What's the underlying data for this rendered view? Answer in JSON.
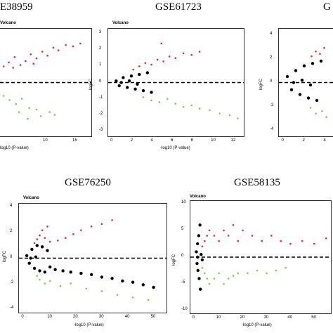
{
  "chart_data": [
    {
      "type": "scatter",
      "panel_id": "p1",
      "title_label": "E38959",
      "subtitle": "Volcano",
      "xlabel": "log10 (P-value)",
      "ylabel": "",
      "x_ticks": [
        "10",
        "15"
      ],
      "y_ticks": [],
      "xlim": [
        5,
        17.5
      ],
      "ylim": [
        -4,
        4
      ],
      "threshold_line_y": 0,
      "series": [
        {
          "name": "",
          "color": "#e8262c",
          "values": [
            [
              5.5,
              1.2
            ],
            [
              6.2,
              1.5
            ],
            [
              7.0,
              1.9
            ],
            [
              7.8,
              1.3
            ],
            [
              8.5,
              1.6
            ],
            [
              9.2,
              2.1
            ],
            [
              10.0,
              1.8
            ],
            [
              10.8,
              2.3
            ],
            [
              11.5,
              2.0
            ],
            [
              12.3,
              2.6
            ],
            [
              13.0,
              2.4
            ],
            [
              14.0,
              2.8
            ],
            [
              15.0,
              2.7
            ],
            [
              16.0,
              2.9
            ],
            [
              6.8,
              1.1
            ],
            [
              9.6,
              1.4
            ]
          ]
        },
        {
          "name": "",
          "color": "#7bcf3a",
          "values": [
            [
              5.5,
              -1.0
            ],
            [
              6.3,
              -1.3
            ],
            [
              7.2,
              -1.6
            ],
            [
              8.0,
              -1.2
            ],
            [
              9.0,
              -1.9
            ],
            [
              10.0,
              -2.0
            ],
            [
              10.6,
              -2.5
            ],
            [
              11.8,
              -2.2
            ],
            [
              12.5,
              -2.4
            ],
            [
              7.6,
              -2.2
            ],
            [
              8.8,
              -2.7
            ]
          ]
        }
      ]
    },
    {
      "type": "scatter",
      "panel_id": "p2",
      "title_label": "GSE61723",
      "subtitle": "Volcano",
      "xlabel": "-log10 (P-value)",
      "ylabel": "logFC",
      "x_ticks": [
        "0",
        "2",
        "4",
        "6",
        "8",
        "10",
        "12"
      ],
      "y_ticks": [
        "3",
        "2",
        "1",
        "0",
        "-1",
        "-2",
        "-3"
      ],
      "xlim": [
        -0.5,
        13
      ],
      "ylim": [
        -3.3,
        3.3
      ],
      "threshold_line_y": 0,
      "series": [
        {
          "name": "",
          "color": "#000000",
          "values": [
            [
              0.3,
              0.1
            ],
            [
              0.6,
              -0.2
            ],
            [
              1.0,
              0.3
            ],
            [
              1.4,
              -0.3
            ],
            [
              1.8,
              0.4
            ],
            [
              2.2,
              -0.4
            ],
            [
              2.6,
              0.5
            ],
            [
              3.0,
              -0.5
            ],
            [
              0.8,
              0.0
            ],
            [
              1.6,
              0.1
            ],
            [
              2.4,
              -0.1
            ],
            [
              3.4,
              0.6
            ],
            [
              3.8,
              -0.6
            ]
          ]
        },
        {
          "name": "",
          "color": "#e8262c",
          "values": [
            [
              2.0,
              0.8
            ],
            [
              2.6,
              1.0
            ],
            [
              3.2,
              1.2
            ],
            [
              3.8,
              1.1
            ],
            [
              4.4,
              1.4
            ],
            [
              5.0,
              1.3
            ],
            [
              5.6,
              1.6
            ],
            [
              6.2,
              1.5
            ],
            [
              7.0,
              1.8
            ],
            [
              7.8,
              1.7
            ],
            [
              8.6,
              1.9
            ],
            [
              4.8,
              2.4
            ]
          ]
        },
        {
          "name": "",
          "color": "#7bcf3a",
          "values": [
            [
              3.0,
              -0.9
            ],
            [
              3.8,
              -1.1
            ],
            [
              4.6,
              -1.2
            ],
            [
              5.4,
              -1.0
            ],
            [
              6.2,
              -1.3
            ],
            [
              7.0,
              -1.5
            ],
            [
              7.8,
              -1.4
            ],
            [
              8.6,
              -1.6
            ],
            [
              9.6,
              -1.7
            ],
            [
              10.6,
              -1.9
            ],
            [
              11.6,
              -2.0
            ],
            [
              12.4,
              -2.2
            ]
          ]
        }
      ]
    },
    {
      "type": "scatter",
      "panel_id": "p3",
      "title_label": "G",
      "subtitle": "",
      "xlabel": "",
      "ylabel": "logFC",
      "x_ticks": [
        "0",
        "2",
        "4"
      ],
      "y_ticks": [
        "4",
        "2",
        "0",
        "-2",
        "-4"
      ],
      "xlim": [
        -0.5,
        5.5
      ],
      "ylim": [
        -4.5,
        4.5
      ],
      "threshold_line_y": 0,
      "series": [
        {
          "name": "",
          "color": "#000000",
          "values": [
            [
              0.3,
              0.5
            ],
            [
              0.7,
              -0.6
            ],
            [
              1.1,
              1.0
            ],
            [
              1.5,
              -1.0
            ],
            [
              1.9,
              1.4
            ],
            [
              2.3,
              -1.3
            ],
            [
              2.7,
              1.6
            ],
            [
              3.1,
              -1.5
            ],
            [
              3.5,
              1.8
            ],
            [
              0.9,
              0.0
            ],
            [
              1.7,
              0.2
            ],
            [
              2.5,
              -0.2
            ]
          ]
        },
        {
          "name": "",
          "color": "#e8262c",
          "values": [
            [
              2.6,
              2.2
            ],
            [
              3.0,
              2.6
            ],
            [
              3.4,
              2.4
            ],
            [
              3.8,
              2.9
            ]
          ]
        },
        {
          "name": "",
          "color": "#7bcf3a",
          "values": [
            [
              2.5,
              -2.1
            ],
            [
              3.0,
              -2.6
            ],
            [
              3.6,
              -2.4
            ],
            [
              4.0,
              -2.9
            ]
          ]
        }
      ]
    },
    {
      "type": "scatter",
      "panel_id": "p4",
      "title_label": "GSE76250",
      "subtitle": "Volcano",
      "xlabel": "-log10 (P-value)",
      "ylabel": "logFC",
      "x_ticks": [
        "0",
        "10",
        "20",
        "30",
        "40",
        "50"
      ],
      "y_ticks": [
        "4",
        "2",
        "0",
        "-2",
        "-4"
      ],
      "xlim": [
        -2,
        55
      ],
      "ylim": [
        -4.3,
        4.3
      ],
      "threshold_line_y": 0,
      "series": [
        {
          "name": "",
          "color": "#000000",
          "values": [
            [
              1,
              0.2
            ],
            [
              2,
              -0.4
            ],
            [
              3,
              0.7
            ],
            [
              4,
              -0.8
            ],
            [
              5,
              1.0
            ],
            [
              6,
              -1.0
            ],
            [
              7,
              0.9
            ],
            [
              8,
              -1.1
            ],
            [
              9,
              0.6
            ],
            [
              10,
              -0.7
            ],
            [
              12,
              -0.9
            ],
            [
              15,
              -1.0
            ],
            [
              18,
              -1.1
            ],
            [
              22,
              -1.2
            ],
            [
              26,
              -1.3
            ],
            [
              30,
              -1.5
            ],
            [
              34,
              -1.6
            ],
            [
              38,
              -1.8
            ],
            [
              42,
              -1.9
            ],
            [
              46,
              -2.1
            ],
            [
              50,
              -2.3
            ],
            [
              2.5,
              0.0
            ],
            [
              4.5,
              0.1
            ]
          ]
        },
        {
          "name": "",
          "color": "#e8262c",
          "values": [
            [
              4,
              1.2
            ],
            [
              5,
              1.5
            ],
            [
              6,
              1.8
            ],
            [
              7,
              2.2
            ],
            [
              8,
              1.6
            ],
            [
              9,
              2.5
            ],
            [
              10,
              1.3
            ],
            [
              13,
              1.4
            ],
            [
              16,
              1.6
            ],
            [
              19,
              1.9
            ],
            [
              22,
              2.2
            ],
            [
              26,
              2.5
            ],
            [
              30,
              2.7
            ],
            [
              34,
              3.0
            ]
          ]
        },
        {
          "name": "",
          "color": "#7bcf3a",
          "values": [
            [
              5,
              -1.4
            ],
            [
              6,
              -1.7
            ],
            [
              8,
              -2.0
            ],
            [
              10,
              -1.8
            ],
            [
              14,
              -2.2
            ],
            [
              18,
              -2.0
            ],
            [
              24,
              -2.4
            ],
            [
              30,
              -2.6
            ],
            [
              36,
              -2.9
            ],
            [
              42,
              -3.1
            ],
            [
              48,
              -3.3
            ]
          ]
        }
      ]
    },
    {
      "type": "scatter",
      "panel_id": "p5",
      "title_label": "GSE58135",
      "subtitle": "Volcano",
      "xlabel": "-log10 (P-value)",
      "ylabel": "logFC",
      "x_ticks": [
        "0",
        "10",
        "20",
        "30",
        "40",
        "50"
      ],
      "y_ticks": [
        "10",
        "5",
        "0",
        "-5",
        "-10"
      ],
      "xlim": [
        -2,
        57
      ],
      "ylim": [
        -10.5,
        10.5
      ],
      "threshold_line_y": 0,
      "series": [
        {
          "name": "",
          "color": "#000000",
          "values": [
            [
              0.5,
              1.0
            ],
            [
              0.8,
              -1.2
            ],
            [
              1.0,
              2.5
            ],
            [
              1.2,
              -2.5
            ],
            [
              1.5,
              4.0
            ],
            [
              1.7,
              -4.0
            ],
            [
              2.0,
              6.0
            ],
            [
              2.2,
              -6.0
            ],
            [
              1.0,
              0.0
            ],
            [
              2.5,
              0.5
            ],
            [
              3.0,
              -0.5
            ]
          ]
        },
        {
          "name": "",
          "color": "#e8262c",
          "values": [
            [
              3,
              2
            ],
            [
              4,
              3
            ],
            [
              5,
              4
            ],
            [
              6,
              5
            ],
            [
              8,
              4
            ],
            [
              10,
              3
            ],
            [
              12,
              5
            ],
            [
              14,
              4
            ],
            [
              16,
              6
            ],
            [
              18,
              3
            ],
            [
              20,
              5
            ],
            [
              24,
              4
            ],
            [
              28,
              3
            ],
            [
              32,
              4
            ],
            [
              36,
              3
            ],
            [
              40,
              2.5
            ],
            [
              45,
              3
            ],
            [
              50,
              2.5
            ],
            [
              55,
              3.5
            ]
          ]
        },
        {
          "name": "",
          "color": "#7bcf3a",
          "values": [
            [
              3,
              -2
            ],
            [
              4,
              -3
            ],
            [
              5,
              -4
            ],
            [
              6,
              -5
            ],
            [
              8,
              -4
            ],
            [
              10,
              -3
            ],
            [
              12,
              -5
            ],
            [
              14,
              -4
            ],
            [
              16,
              -3.5
            ],
            [
              18,
              -3
            ],
            [
              22,
              -3
            ],
            [
              26,
              -2.5
            ],
            [
              30,
              -3
            ],
            [
              34,
              -2.5
            ],
            [
              38,
              -2
            ]
          ]
        }
      ]
    }
  ]
}
